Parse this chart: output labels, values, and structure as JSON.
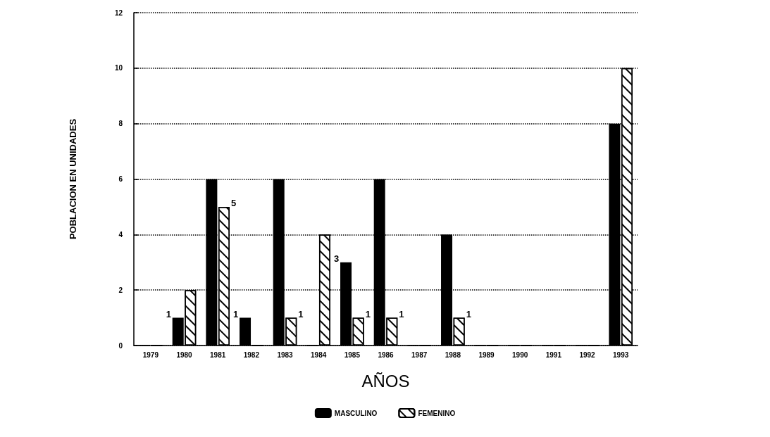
{
  "chart_data": {
    "type": "bar",
    "xlabel": "AÑOS",
    "ylabel": "POBLACION EN UNIDADES",
    "categories": [
      "1979",
      "1980",
      "1981",
      "1982",
      "1983",
      "1984",
      "1985",
      "1986",
      "1987",
      "1988",
      "1989",
      "1990",
      "1991",
      "1992",
      "1993"
    ],
    "series": [
      {
        "name": "MASCULINO",
        "color": "#000000",
        "values": [
          0,
          1,
          6,
          1,
          6,
          0,
          3,
          6,
          0,
          4,
          0,
          0,
          0,
          0,
          8
        ],
        "value_labels": [
          null,
          "1",
          null,
          "1",
          null,
          null,
          "3",
          null,
          null,
          null,
          null,
          null,
          null,
          null,
          null
        ]
      },
      {
        "name": "FEMENINO",
        "color": "#ffffff",
        "values": [
          0,
          2,
          5,
          0,
          1,
          4,
          1,
          1,
          0,
          1,
          0,
          0,
          0,
          0,
          10
        ],
        "value_labels": [
          null,
          null,
          "5",
          null,
          "1",
          null,
          "1",
          "1",
          null,
          "1",
          null,
          null,
          null,
          null,
          null
        ]
      }
    ],
    "ylim": [
      0,
      12
    ],
    "yticks": [
      0,
      2,
      4,
      6,
      8,
      10,
      12
    ],
    "grid": "y",
    "legend": "bottom"
  }
}
